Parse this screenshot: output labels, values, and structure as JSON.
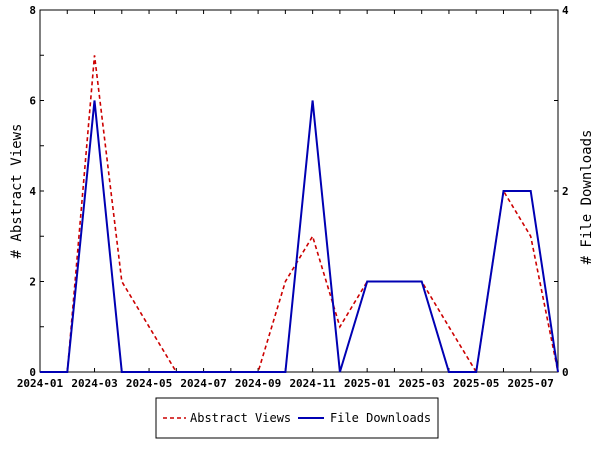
{
  "chart_data": {
    "type": "line",
    "x": [
      "2024-01",
      "2024-02",
      "2024-03",
      "2024-04",
      "2024-05",
      "2024-06",
      "2024-07",
      "2024-08",
      "2024-09",
      "2024-10",
      "2024-11",
      "2024-12",
      "2025-01",
      "2025-02",
      "2025-03",
      "2025-04",
      "2025-05",
      "2025-06",
      "2025-07",
      "2025-08"
    ],
    "x_tick_labels": [
      "2024-01",
      "2024-03",
      "2024-05",
      "2024-07",
      "2024-09",
      "2024-11",
      "2025-01",
      "2025-03",
      "2025-05",
      "2025-07"
    ],
    "series": [
      {
        "name": "Abstract Views",
        "axis": "left",
        "color": "#cc0000",
        "style": "dashed",
        "values": [
          0,
          0,
          7,
          2,
          1,
          0,
          0,
          0,
          0,
          2,
          3,
          1,
          2,
          2,
          2,
          1,
          0,
          4,
          3,
          0
        ]
      },
      {
        "name": "File Downloads",
        "axis": "right",
        "color": "#0000b3",
        "style": "solid",
        "values": [
          0,
          0,
          3,
          0,
          0,
          0,
          0,
          0,
          0,
          0,
          3,
          0,
          1,
          1,
          1,
          0,
          0,
          2,
          2,
          0
        ]
      }
    ],
    "ylabel": "# Abstract Views",
    "y2label": "# File Downloads",
    "ylim": [
      0,
      8
    ],
    "y_ticks": [
      "0",
      "2",
      "4",
      "6",
      "8"
    ],
    "y2lim": [
      0,
      4
    ],
    "y2_ticks": [
      "0",
      "2",
      "4"
    ],
    "grid": false,
    "legend_position": "bottom"
  }
}
